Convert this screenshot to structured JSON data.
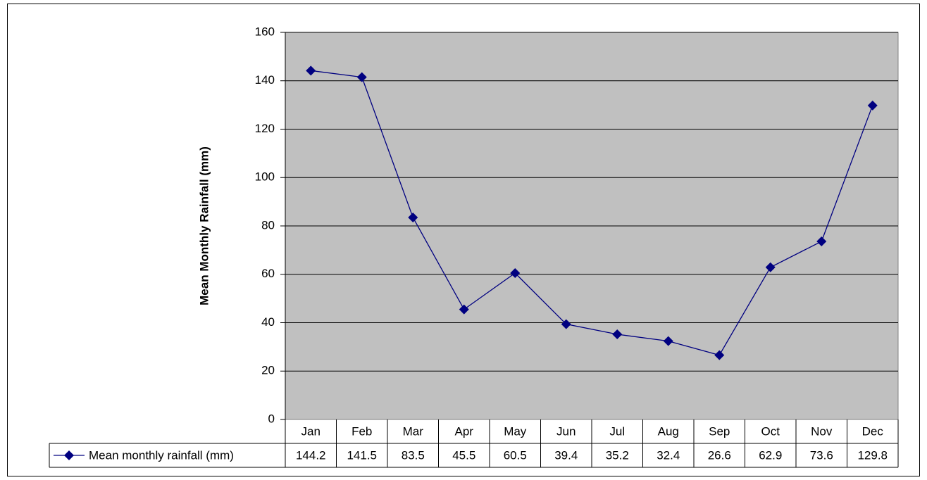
{
  "chart_data": {
    "type": "line",
    "y_label": "Mean Monthly Rainfall (mm)",
    "categories": [
      "Jan",
      "Feb",
      "Mar",
      "Apr",
      "May",
      "Jun",
      "Jul",
      "Aug",
      "Sep",
      "Oct",
      "Nov",
      "Dec"
    ],
    "series": [
      {
        "name": "Mean monthly rainfall (mm)",
        "color": "#000080",
        "values": [
          144.2,
          141.5,
          83.5,
          45.5,
          60.5,
          39.4,
          35.2,
          32.4,
          26.6,
          62.9,
          73.6,
          129.8
        ]
      }
    ],
    "ylim": [
      0,
      160
    ],
    "yticks": [
      0,
      20,
      40,
      60,
      80,
      100,
      120,
      140,
      160
    ],
    "grid": true,
    "data_table": true
  }
}
